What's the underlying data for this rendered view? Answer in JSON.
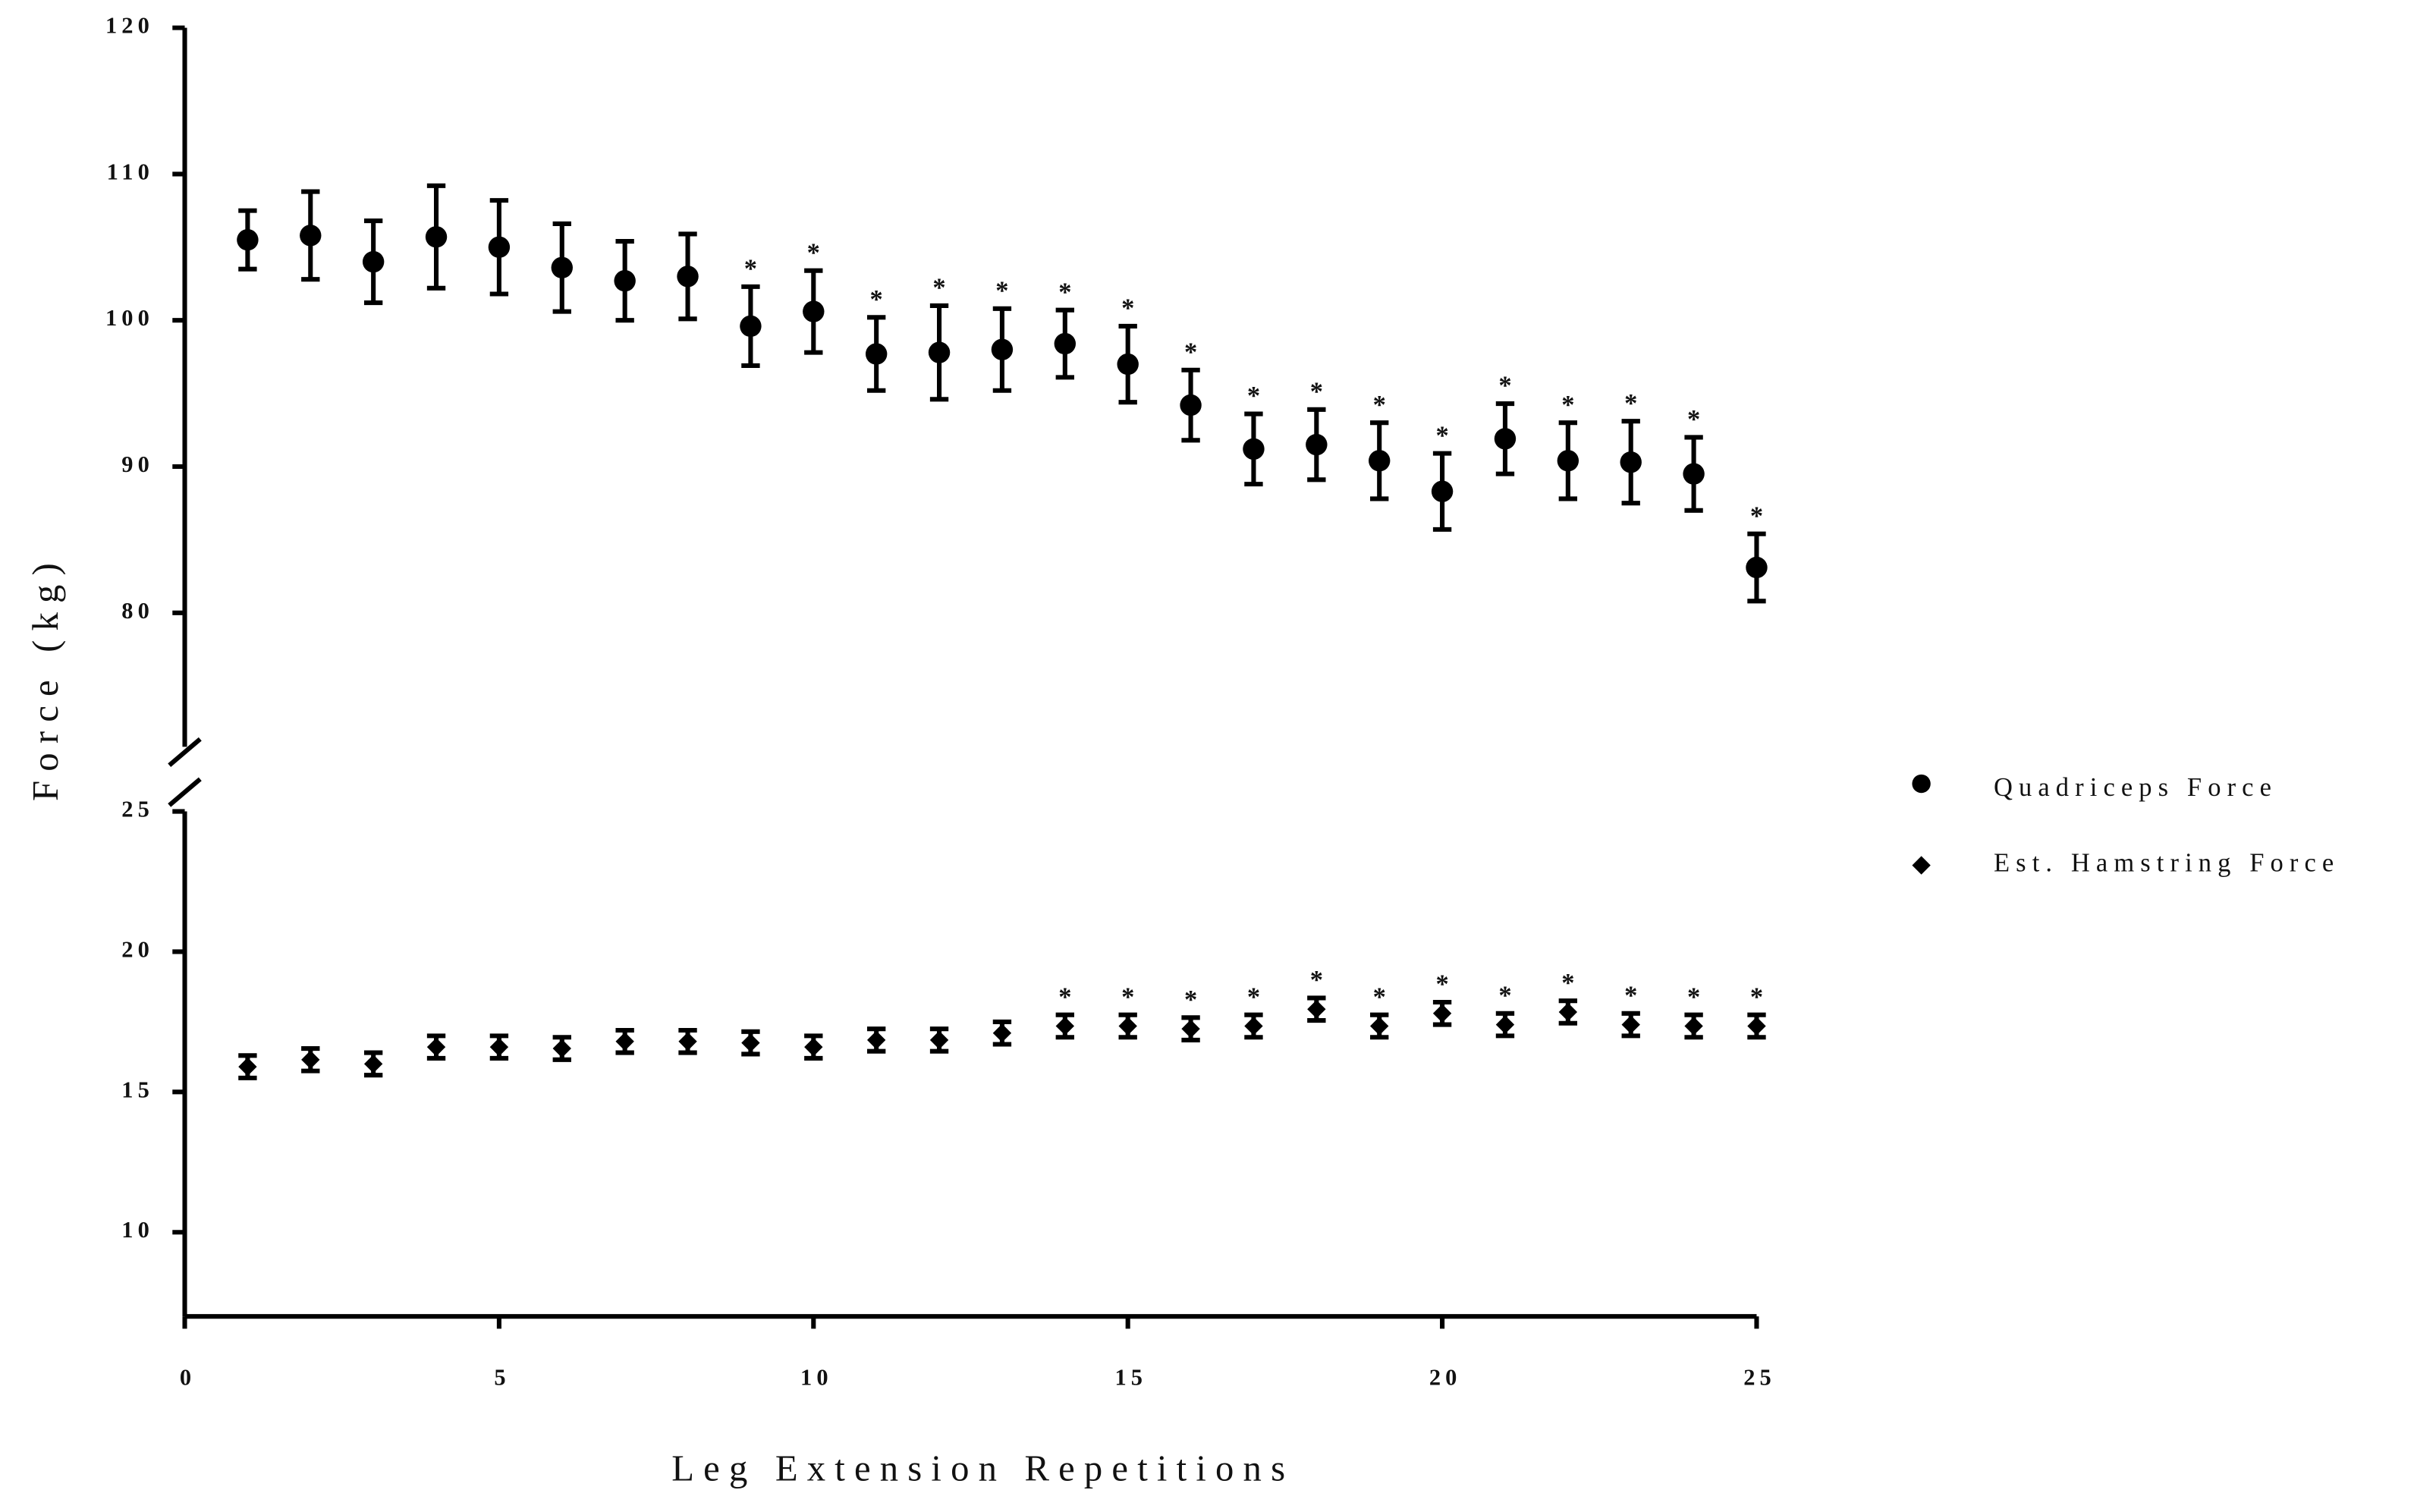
{
  "chart_data": [
    {
      "type": "scatter",
      "ylabel": "Force (kg)",
      "x": [
        1,
        2,
        3,
        4,
        5,
        6,
        7,
        8,
        9,
        10,
        11,
        12,
        13,
        14,
        15,
        16,
        17,
        18,
        19,
        20,
        21,
        22,
        23,
        24,
        25
      ],
      "xlim": [
        0,
        25
      ],
      "ylim": [
        70,
        120
      ],
      "yticks": [
        80,
        90,
        100,
        110,
        120
      ],
      "series": [
        {
          "name": "Quadriceps Force",
          "color": "#000000",
          "marker": "circle",
          "values": [
            105.5,
            105.8,
            104.0,
            105.7,
            105.0,
            103.6,
            102.7,
            103.0,
            99.6,
            100.6,
            97.7,
            97.8,
            98.0,
            98.4,
            97.0,
            94.2,
            91.2,
            91.5,
            90.4,
            88.3,
            91.9,
            90.4,
            90.3,
            89.5,
            83.1
          ],
          "errors": [
            2.0,
            3.0,
            2.8,
            3.5,
            3.2,
            3.0,
            2.7,
            2.9,
            2.7,
            2.8,
            2.5,
            3.2,
            2.8,
            2.3,
            2.6,
            2.4,
            2.4,
            2.4,
            2.6,
            2.6,
            2.4,
            2.6,
            2.8,
            2.5,
            2.3
          ],
          "annotations": [
            null,
            null,
            null,
            null,
            null,
            null,
            null,
            null,
            "*",
            "*",
            "*",
            "*",
            "*",
            "*",
            "*",
            "*",
            "*",
            "*",
            "*",
            "*",
            "*",
            "*",
            "*",
            "*",
            "*"
          ]
        }
      ]
    },
    {
      "type": "scatter",
      "xlabel": "Leg Extension Repetitions",
      "x": [
        1,
        2,
        3,
        4,
        5,
        6,
        7,
        8,
        9,
        10,
        11,
        12,
        13,
        14,
        15,
        16,
        17,
        18,
        19,
        20,
        21,
        22,
        23,
        24,
        25
      ],
      "xlim": [
        0,
        25
      ],
      "xticks": [
        0,
        5,
        10,
        15,
        20,
        25
      ],
      "ylim": [
        7,
        25
      ],
      "yticks": [
        10,
        15,
        20,
        25
      ],
      "series": [
        {
          "name": "Est. Hamstring Force",
          "color": "#000000",
          "marker": "diamond",
          "values": [
            15.9,
            16.15,
            16.0,
            16.6,
            16.6,
            16.55,
            16.8,
            16.8,
            16.75,
            16.6,
            16.85,
            16.85,
            17.1,
            17.35,
            17.35,
            17.25,
            17.35,
            17.95,
            17.35,
            17.8,
            17.4,
            17.85,
            17.4,
            17.35,
            17.35
          ],
          "errors": [
            0.4,
            0.4,
            0.4,
            0.4,
            0.4,
            0.4,
            0.4,
            0.4,
            0.4,
            0.4,
            0.4,
            0.4,
            0.4,
            0.4,
            0.4,
            0.4,
            0.4,
            0.4,
            0.4,
            0.4,
            0.4,
            0.4,
            0.4,
            0.4,
            0.4
          ],
          "annotations": [
            null,
            null,
            null,
            null,
            null,
            null,
            null,
            null,
            null,
            null,
            null,
            null,
            null,
            "*",
            "*",
            "*",
            "*",
            "*",
            "*",
            "*",
            "*",
            "*",
            "*",
            "*",
            "*"
          ]
        }
      ]
    }
  ]
}
